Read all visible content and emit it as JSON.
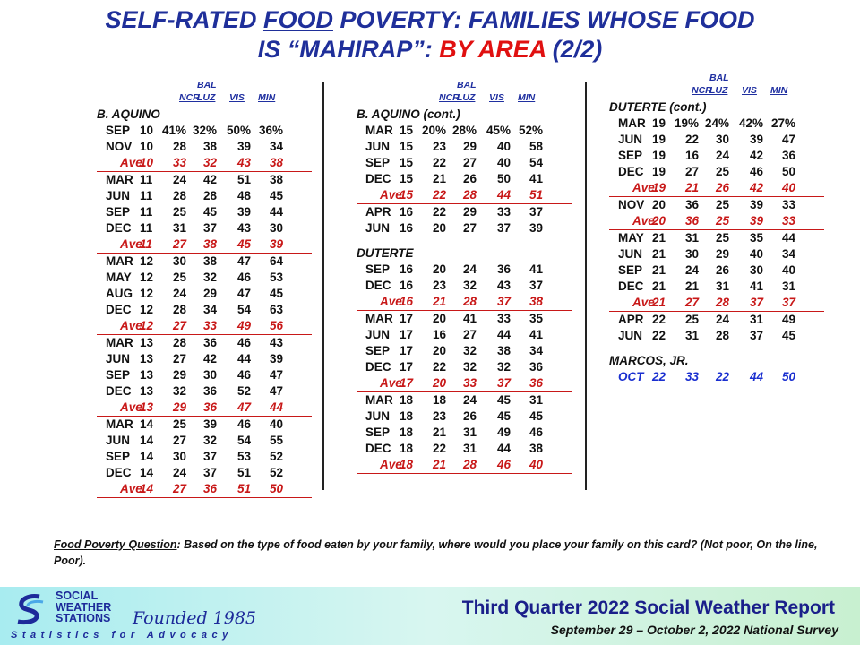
{
  "title": {
    "part1": "SELF-RATED ",
    "part2": "FOOD",
    "part3": " POVERTY: FAMILIES WHOSE FOOD",
    "part4": "IS “MAHIRAP”: ",
    "part5": "BY AREA",
    "part6": "  (2/2)"
  },
  "header": {
    "bal": "BAL",
    "ncr": "NCR",
    "luz": "LUZ",
    "vis": "VIS",
    "min": "MIN"
  },
  "panels": [
    {
      "sections": [
        {
          "label": "B. AQUINO",
          "rows": [
            {
              "kind": "data",
              "m": "SEP",
              "y": "10",
              "v": [
                "41%",
                "32%",
                "50%",
                "36%"
              ]
            },
            {
              "kind": "data",
              "m": "NOV",
              "y": "10",
              "v": [
                "28",
                "38",
                "39",
                "34"
              ]
            },
            {
              "kind": "avg",
              "m": "Ave.",
              "y": "10",
              "v": [
                "33",
                "32",
                "43",
                "38"
              ]
            },
            {
              "kind": "data",
              "m": "MAR",
              "y": "11",
              "v": [
                "24",
                "42",
                "51",
                "38"
              ]
            },
            {
              "kind": "data",
              "m": "JUN",
              "y": "11",
              "v": [
                "28",
                "28",
                "48",
                "45"
              ]
            },
            {
              "kind": "data",
              "m": "SEP",
              "y": "11",
              "v": [
                "25",
                "45",
                "39",
                "44"
              ]
            },
            {
              "kind": "data",
              "m": "DEC",
              "y": "11",
              "v": [
                "31",
                "37",
                "43",
                "30"
              ]
            },
            {
              "kind": "avg",
              "m": "Ave.",
              "y": "11",
              "v": [
                "27",
                "38",
                "45",
                "39"
              ]
            },
            {
              "kind": "data",
              "m": "MAR",
              "y": "12",
              "v": [
                "30",
                "38",
                "47",
                "64"
              ]
            },
            {
              "kind": "data",
              "m": "MAY",
              "y": "12",
              "v": [
                "25",
                "32",
                "46",
                "53"
              ]
            },
            {
              "kind": "data",
              "m": "AUG",
              "y": "12",
              "v": [
                "24",
                "29",
                "47",
                "45"
              ]
            },
            {
              "kind": "data",
              "m": "DEC",
              "y": "12",
              "v": [
                "28",
                "34",
                "54",
                "63"
              ]
            },
            {
              "kind": "avg",
              "m": "Ave.",
              "y": "12",
              "v": [
                "27",
                "33",
                "49",
                "56"
              ]
            },
            {
              "kind": "data",
              "m": "MAR",
              "y": "13",
              "v": [
                "28",
                "36",
                "46",
                "43"
              ]
            },
            {
              "kind": "data",
              "m": "JUN",
              "y": "13",
              "v": [
                "27",
                "42",
                "44",
                "39"
              ]
            },
            {
              "kind": "data",
              "m": "SEP",
              "y": "13",
              "v": [
                "29",
                "30",
                "46",
                "47"
              ]
            },
            {
              "kind": "data",
              "m": "DEC",
              "y": "13",
              "v": [
                "32",
                "36",
                "52",
                "47"
              ]
            },
            {
              "kind": "avg",
              "m": "Ave.",
              "y": "13",
              "v": [
                "29",
                "36",
                "47",
                "44"
              ]
            },
            {
              "kind": "data",
              "m": "MAR",
              "y": "14",
              "v": [
                "25",
                "39",
                "46",
                "40"
              ]
            },
            {
              "kind": "data",
              "m": "JUN",
              "y": "14",
              "v": [
                "27",
                "32",
                "54",
                "55"
              ]
            },
            {
              "kind": "data",
              "m": "SEP",
              "y": "14",
              "v": [
                "30",
                "37",
                "53",
                "52"
              ]
            },
            {
              "kind": "data",
              "m": "DEC",
              "y": "14",
              "v": [
                "24",
                "37",
                "51",
                "52"
              ]
            },
            {
              "kind": "avg",
              "m": "Ave.",
              "y": "14",
              "v": [
                "27",
                "36",
                "51",
                "50"
              ]
            }
          ]
        }
      ]
    },
    {
      "sections": [
        {
          "label": "B. AQUINO (cont.)",
          "rows": [
            {
              "kind": "data",
              "m": "MAR",
              "y": "15",
              "v": [
                "20%",
                "28%",
                "45%",
                "52%"
              ]
            },
            {
              "kind": "data",
              "m": "JUN",
              "y": "15",
              "v": [
                "23",
                "29",
                "40",
                "58"
              ]
            },
            {
              "kind": "data",
              "m": "SEP",
              "y": "15",
              "v": [
                "22",
                "27",
                "40",
                "54"
              ]
            },
            {
              "kind": "data",
              "m": "DEC",
              "y": "15",
              "v": [
                "21",
                "26",
                "50",
                "41"
              ]
            },
            {
              "kind": "avg",
              "m": "Ave.",
              "y": "15",
              "v": [
                "22",
                "28",
                "44",
                "51"
              ]
            },
            {
              "kind": "data",
              "m": "APR",
              "y": "16",
              "v": [
                "22",
                "29",
                "33",
                "37"
              ]
            },
            {
              "kind": "data",
              "m": "JUN",
              "y": "16",
              "v": [
                "20",
                "27",
                "37",
                "39"
              ]
            }
          ]
        },
        {
          "label": "DUTERTE",
          "rows": [
            {
              "kind": "data",
              "m": "SEP",
              "y": "16",
              "v": [
                "20",
                "24",
                "36",
                "41"
              ]
            },
            {
              "kind": "data",
              "m": "DEC",
              "y": "16",
              "v": [
                "23",
                "32",
                "43",
                "37"
              ]
            },
            {
              "kind": "avg",
              "m": "Ave.",
              "y": "16",
              "v": [
                "21",
                "28",
                "37",
                "38"
              ]
            },
            {
              "kind": "data",
              "m": "MAR",
              "y": "17",
              "v": [
                "20",
                "41",
                "33",
                "35"
              ]
            },
            {
              "kind": "data",
              "m": "JUN",
              "y": "17",
              "v": [
                "16",
                "27",
                "44",
                "41"
              ]
            },
            {
              "kind": "data",
              "m": "SEP",
              "y": "17",
              "v": [
                "20",
                "32",
                "38",
                "34"
              ]
            },
            {
              "kind": "data",
              "m": "DEC",
              "y": "17",
              "v": [
                "22",
                "32",
                "32",
                "36"
              ]
            },
            {
              "kind": "avg",
              "m": "Ave.",
              "y": "17",
              "v": [
                "20",
                "33",
                "37",
                "36"
              ]
            },
            {
              "kind": "data",
              "m": "MAR",
              "y": "18",
              "v": [
                "18",
                "24",
                "45",
                "31"
              ]
            },
            {
              "kind": "data",
              "m": "JUN",
              "y": "18",
              "v": [
                "23",
                "26",
                "45",
                "45"
              ]
            },
            {
              "kind": "data",
              "m": "SEP",
              "y": "18",
              "v": [
                "21",
                "31",
                "49",
                "46"
              ]
            },
            {
              "kind": "data",
              "m": "DEC",
              "y": "18",
              "v": [
                "22",
                "31",
                "44",
                "38"
              ]
            },
            {
              "kind": "avg",
              "m": "Ave.",
              "y": "18",
              "v": [
                "21",
                "28",
                "46",
                "40"
              ]
            }
          ]
        }
      ]
    },
    {
      "sections": [
        {
          "label": "DUTERTE (cont.)",
          "rows": [
            {
              "kind": "data",
              "m": "MAR",
              "y": "19",
              "v": [
                "19%",
                "24%",
                "42%",
                "27%"
              ]
            },
            {
              "kind": "data",
              "m": "JUN",
              "y": "19",
              "v": [
                "22",
                "30",
                "39",
                "47"
              ]
            },
            {
              "kind": "data",
              "m": "SEP",
              "y": "19",
              "v": [
                "16",
                "24",
                "42",
                "36"
              ]
            },
            {
              "kind": "data",
              "m": "DEC",
              "y": "19",
              "v": [
                "27",
                "25",
                "46",
                "50"
              ]
            },
            {
              "kind": "avg",
              "m": "Ave.",
              "y": "19",
              "v": [
                "21",
                "26",
                "42",
                "40"
              ]
            },
            {
              "kind": "data",
              "m": "NOV",
              "y": "20",
              "v": [
                "36",
                "25",
                "39",
                "33"
              ]
            },
            {
              "kind": "avg",
              "m": "Ave.",
              "y": "20",
              "v": [
                "36",
                "25",
                "39",
                "33"
              ]
            },
            {
              "kind": "data",
              "m": "MAY",
              "y": "21",
              "v": [
                "31",
                "25",
                "35",
                "44"
              ]
            },
            {
              "kind": "data",
              "m": "JUN",
              "y": "21",
              "v": [
                "30",
                "29",
                "40",
                "34"
              ]
            },
            {
              "kind": "data",
              "m": "SEP",
              "y": "21",
              "v": [
                "24",
                "26",
                "30",
                "40"
              ]
            },
            {
              "kind": "data",
              "m": "DEC",
              "y": "21",
              "v": [
                "21",
                "31",
                "41",
                "31"
              ]
            },
            {
              "kind": "avg",
              "m": "Ave.",
              "y": "21",
              "v": [
                "27",
                "28",
                "37",
                "37"
              ]
            },
            {
              "kind": "data",
              "m": "APR",
              "y": "22",
              "v": [
                "25",
                "24",
                "31",
                "49"
              ]
            },
            {
              "kind": "data",
              "m": "JUN",
              "y": "22",
              "v": [
                "31",
                "28",
                "37",
                "45"
              ]
            }
          ]
        },
        {
          "label": "MARCOS, JR.",
          "rows": [
            {
              "kind": "blue",
              "m": "OCT",
              "y": "22",
              "v": [
                "33",
                "22",
                "44",
                "50"
              ]
            }
          ]
        }
      ]
    }
  ],
  "note": {
    "question_label": "Food Poverty Question",
    "text": ":  Based on the type of food eaten by your family,  where would you place your family on this card?  (Not poor, On the line, Poor)."
  },
  "footer": {
    "logo_line1": "SOCIAL",
    "logo_line2": "WEATHER",
    "logo_line3": "STATIONS",
    "founded": "Founded 1985",
    "tagline": "Statistics for Advocacy",
    "report_title": "Third Quarter 2022 Social Weather Report",
    "report_subtitle": "September 29 – October 2, 2022 National Survey"
  },
  "colors": {
    "title_blue": "#1f2f9a",
    "title_red": "#e01010",
    "average_red": "#c81818",
    "latest_blue": "#1a2fd0"
  }
}
